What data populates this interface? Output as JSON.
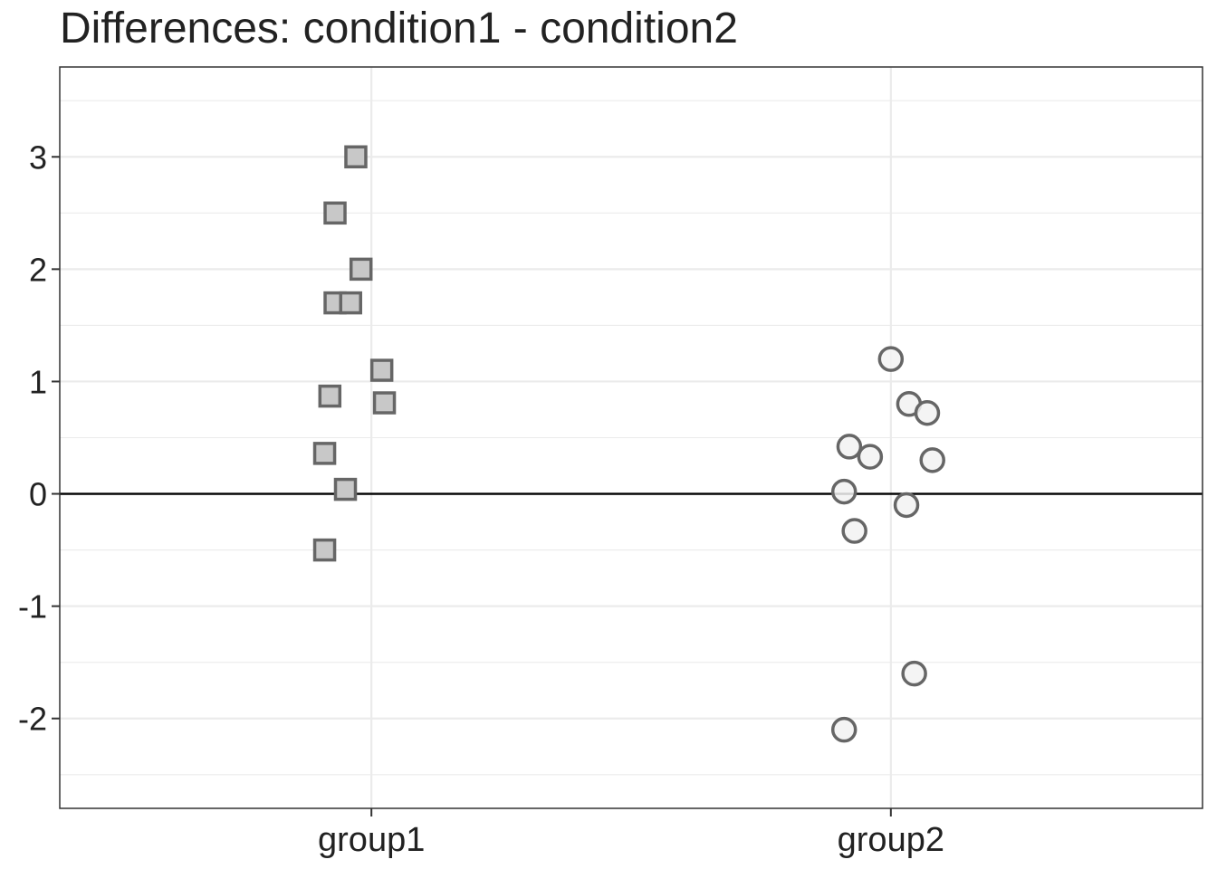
{
  "chart_data": {
    "type": "scatter",
    "title": "Differences: condition1 - condition2",
    "xlabel": "",
    "ylabel": "",
    "categories": [
      "group1",
      "group2"
    ],
    "ylim": [
      -2.8,
      3.8
    ],
    "yticks": [
      -2,
      -1,
      0,
      1,
      2,
      3
    ],
    "grid": true,
    "reference_line": 0,
    "colors": {
      "background": "#ffffff",
      "grid": "#ebebeb",
      "frame": "#333333",
      "reference": "#000000",
      "marker_stroke": "#666666",
      "group1_fill": "#c8c8c8",
      "group2_fill": "#f2f2f2"
    },
    "series": [
      {
        "category": "group1",
        "marker": "square",
        "points": [
          {
            "jitter": -0.03,
            "y": 3.0
          },
          {
            "jitter": -0.07,
            "y": 2.5
          },
          {
            "jitter": -0.02,
            "y": 2.0
          },
          {
            "jitter": -0.07,
            "y": 1.7
          },
          {
            "jitter": -0.04,
            "y": 1.7
          },
          {
            "jitter": 0.02,
            "y": 1.1
          },
          {
            "jitter": -0.08,
            "y": 0.87
          },
          {
            "jitter": 0.025,
            "y": 0.81
          },
          {
            "jitter": -0.09,
            "y": 0.36
          },
          {
            "jitter": -0.05,
            "y": 0.04
          },
          {
            "jitter": -0.09,
            "y": -0.5
          }
        ]
      },
      {
        "category": "group2",
        "marker": "circle",
        "points": [
          {
            "jitter": 0.0,
            "y": 1.2
          },
          {
            "jitter": 0.035,
            "y": 0.8
          },
          {
            "jitter": 0.07,
            "y": 0.72
          },
          {
            "jitter": -0.08,
            "y": 0.42
          },
          {
            "jitter": -0.04,
            "y": 0.33
          },
          {
            "jitter": 0.08,
            "y": 0.3
          },
          {
            "jitter": -0.09,
            "y": 0.02
          },
          {
            "jitter": 0.03,
            "y": -0.1
          },
          {
            "jitter": -0.07,
            "y": -0.33
          },
          {
            "jitter": 0.045,
            "y": -1.6
          },
          {
            "jitter": -0.09,
            "y": -2.1
          }
        ]
      }
    ]
  }
}
